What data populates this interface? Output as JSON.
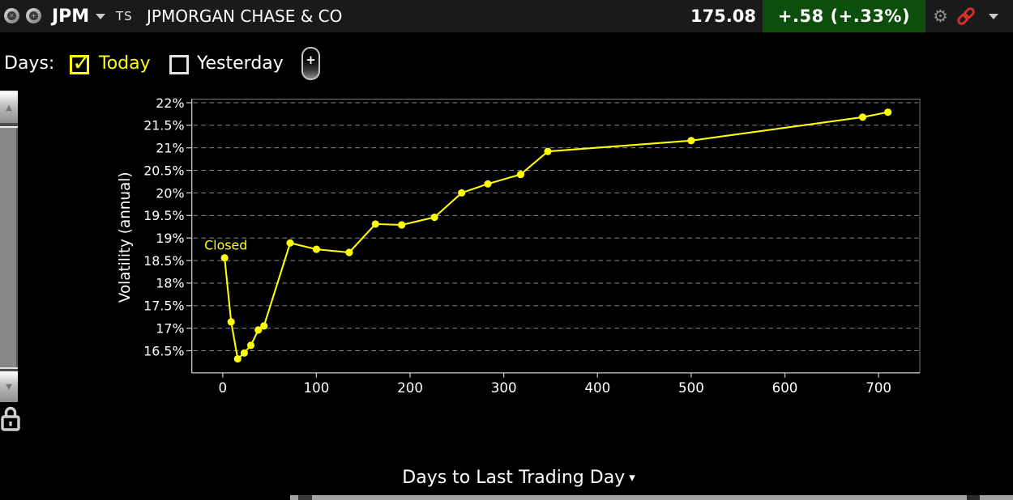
{
  "top_bar": {
    "symbol": "JPM",
    "ts": "TS",
    "company": "JPMORGAN CHASE & CO",
    "price": "175.08",
    "change": "+.58 (+.33%)"
  },
  "days_row": {
    "label": "Days:",
    "options": [
      {
        "label": "Today",
        "checked": true
      },
      {
        "label": "Yesterday",
        "checked": false
      }
    ],
    "add_button": "+"
  },
  "icons": {
    "gear": "⚙",
    "caret_down": "▾",
    "scroll_up": "▲",
    "scroll_down": "▼",
    "check": "✓",
    "circle1": "✕",
    "circle2": "+",
    "link": "chain-link",
    "lock": "open-padlock"
  },
  "colors": {
    "accent_yellow": "#ffff00",
    "change_badge_bg": "#0c4e0c",
    "link_red": "#d22f2f",
    "grid_gray": "#9a9a9a",
    "axis_gray": "#c8c8c8"
  },
  "chart_data": {
    "type": "line",
    "title": "",
    "xlabel": "Days to Last Trading Day",
    "ylabel": "Volatility (annual)",
    "legend_position": "none",
    "grid": "horizontal-dashed",
    "xlim": [
      -33,
      744
    ],
    "ylim": [
      16.01,
      22.08
    ],
    "xticks": [
      0,
      100,
      200,
      300,
      400,
      500,
      600,
      700
    ],
    "xtick_labels": [
      "0",
      "100",
      "200",
      "300",
      "400",
      "500",
      "600",
      "700"
    ],
    "yticks": [
      16.5,
      17,
      17.5,
      18,
      18.5,
      19,
      19.5,
      20,
      20.5,
      21,
      21.5,
      22
    ],
    "ytick_labels": [
      "16.5%",
      "17%",
      "17.5%",
      "18%",
      "18.5%",
      "19%",
      "19.5%",
      "20%",
      "20.5%",
      "21%",
      "21.5%",
      "22%"
    ],
    "series": [
      {
        "name": "Today",
        "color": "#ffff00",
        "points": [
          [
            2,
            18.56
          ],
          [
            9,
            17.14
          ],
          [
            16,
            16.32
          ],
          [
            23,
            16.45
          ],
          [
            30,
            16.62
          ],
          [
            38,
            16.96
          ],
          [
            44,
            17.05
          ],
          [
            72,
            18.89
          ],
          [
            100,
            18.75
          ],
          [
            135,
            18.68
          ],
          [
            163,
            19.31
          ],
          [
            191,
            19.29
          ],
          [
            226,
            19.46
          ],
          [
            255,
            20.0
          ],
          [
            283,
            20.2
          ],
          [
            318,
            20.41
          ],
          [
            347,
            20.92
          ],
          [
            500,
            21.16
          ],
          [
            683,
            21.68
          ],
          [
            710,
            21.79
          ]
        ]
      }
    ],
    "annotation": {
      "text": "Closed",
      "x": 2,
      "y": 18.56
    }
  }
}
